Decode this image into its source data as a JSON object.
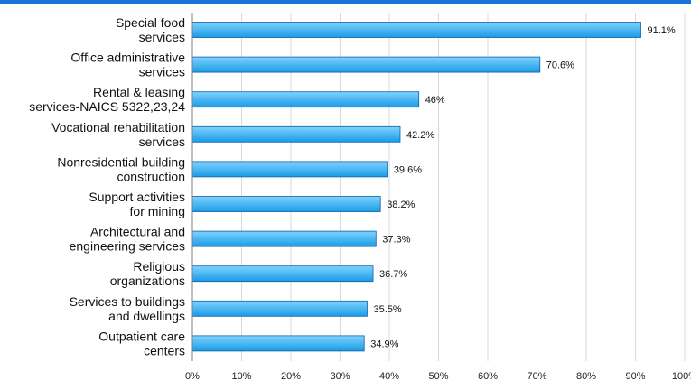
{
  "theme": {
    "top_band_color": "#1a73d9",
    "bar_fill_top": "#7fd3ff",
    "bar_fill_bottom": "#1a9be6",
    "bar_stroke": "#0d5fa8",
    "grid_color": "#d9d9d9",
    "axis_color": "#7f7f7f"
  },
  "chart_data": {
    "type": "bar",
    "orientation": "horizontal",
    "title": "",
    "xlabel": "",
    "ylabel": "",
    "xlim": [
      0,
      100
    ],
    "grid": true,
    "categories": [
      [
        "Special food",
        "services"
      ],
      [
        "Office administrative",
        "services"
      ],
      [
        "Rental & leasing",
        "services-NAICS 5322,23,24"
      ],
      [
        "Vocational rehabilitation",
        "services"
      ],
      [
        "Nonresidential building",
        "construction"
      ],
      [
        "Support activities",
        "for mining"
      ],
      [
        "Architectural and",
        "engineering services"
      ],
      [
        "Religious",
        "organizations"
      ],
      [
        "Services to buildings",
        "and dwellings"
      ],
      [
        "Outpatient care",
        "centers"
      ]
    ],
    "values": [
      91.1,
      70.6,
      46,
      42.2,
      39.6,
      38.2,
      37.3,
      36.7,
      35.5,
      34.9
    ],
    "data_labels": [
      "91.1%",
      "70.6%",
      "46%",
      "42.2%",
      "39.6%",
      "38.2%",
      "37.3%",
      "36.7%",
      "35.5%",
      "34.9%"
    ],
    "ticks": [
      0,
      10,
      20,
      30,
      40,
      50,
      60,
      70,
      80,
      90,
      100
    ],
    "tick_labels": [
      "0%",
      "10%",
      "20%",
      "30%",
      "40%",
      "50%",
      "60%",
      "70%",
      "80%",
      "90%",
      "100%"
    ]
  }
}
